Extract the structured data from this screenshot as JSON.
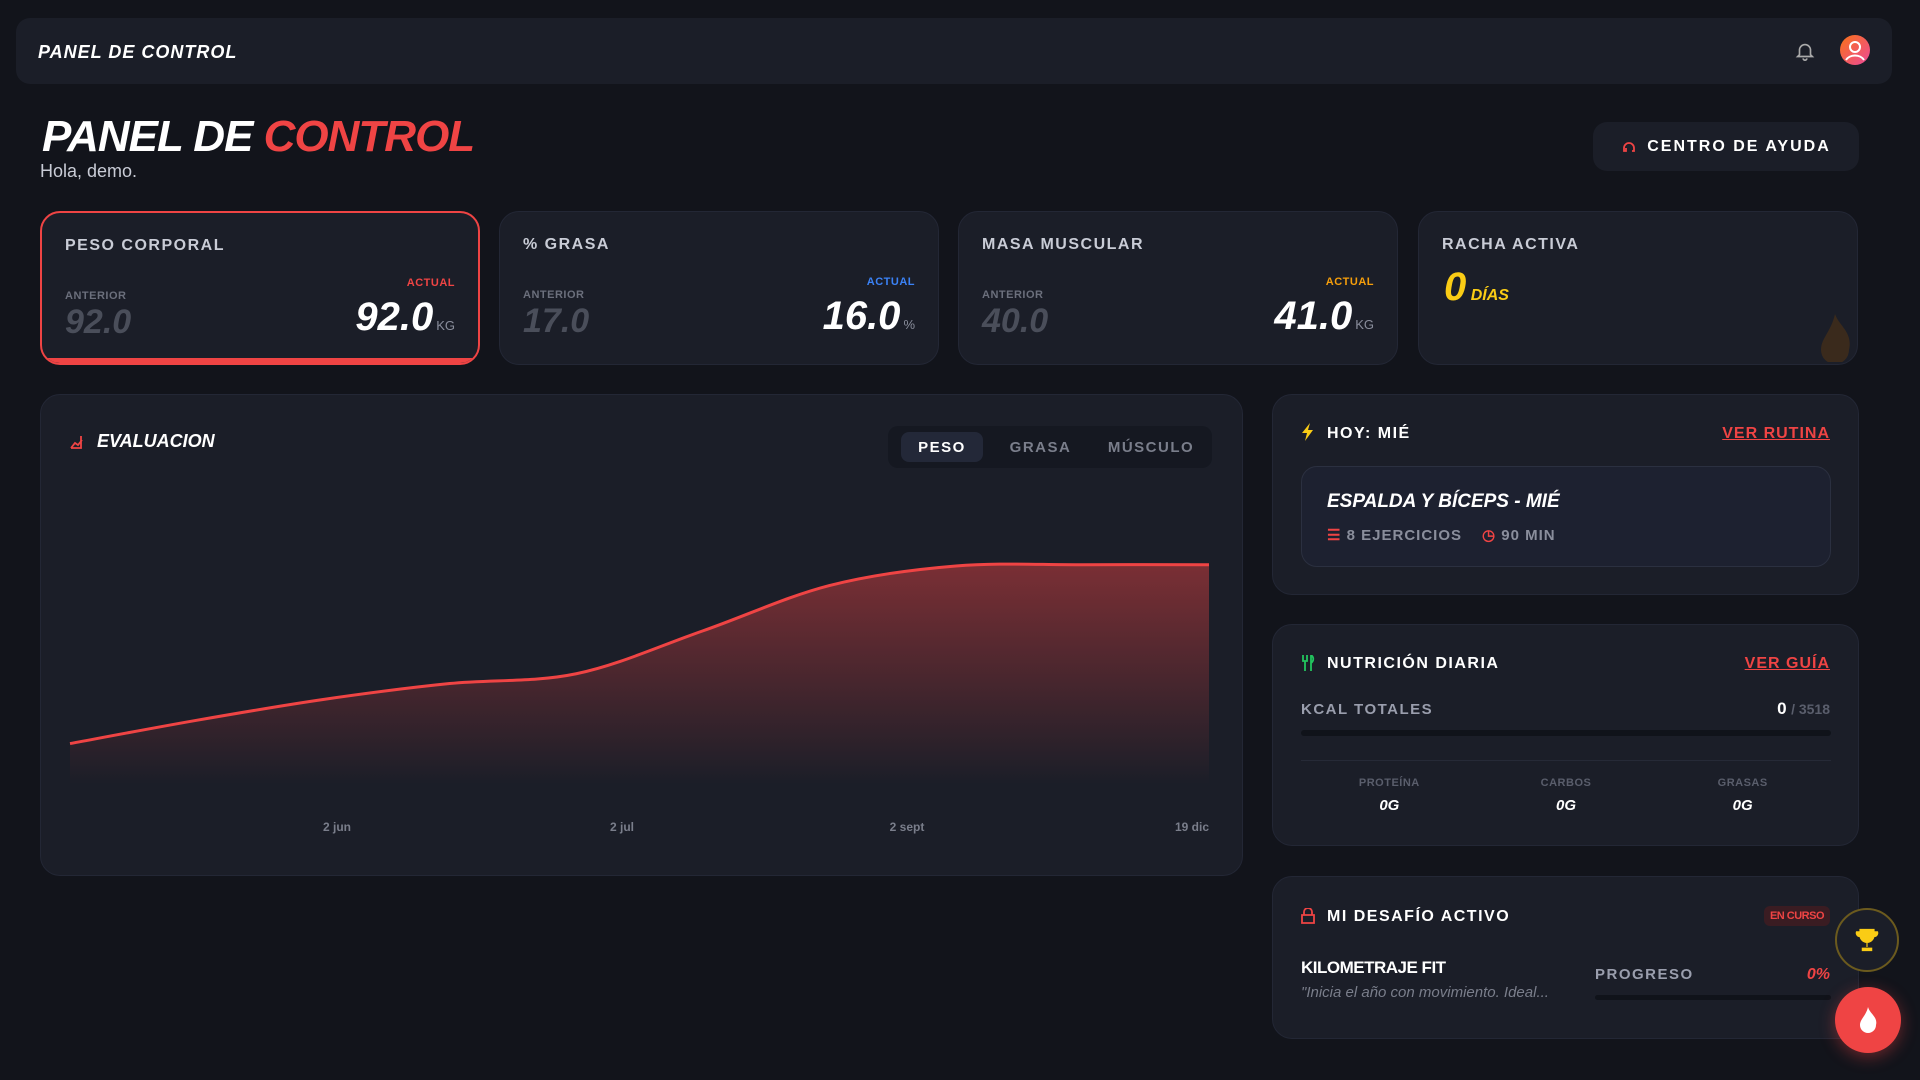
{
  "header": {
    "title": "PANEL DE CONTROL"
  },
  "page": {
    "title_main": "PANEL DE",
    "title_accent": "CONTROL",
    "greeting": "Hola, demo.",
    "help_button": "CENTRO DE AYUDA"
  },
  "stats": [
    {
      "label": "PESO CORPORAL",
      "previous_label": "ANTERIOR",
      "previous": "92.0",
      "current_label": "ACTUAL",
      "current": "92.0",
      "unit": "KG",
      "color": "#ef4444"
    },
    {
      "label": "% GRASA",
      "previous_label": "ANTERIOR",
      "previous": "17.0",
      "current_label": "ACTUAL",
      "current": "16.0",
      "unit": "%",
      "color": "#3b82f6"
    },
    {
      "label": "MASA MUSCULAR",
      "previous_label": "ANTERIOR",
      "previous": "40.0",
      "current_label": "ACTUAL",
      "current": "41.0",
      "unit": "KG",
      "color": "#f59e0b"
    }
  ],
  "streak": {
    "label": "RACHA ACTIVA",
    "value": "0",
    "unit": "DÍAS"
  },
  "chart_data": {
    "type": "area",
    "title": "EVALUACION",
    "tabs": [
      "PESO",
      "GRASA",
      "MÚSCULO"
    ],
    "active_tab": 0,
    "x_labels": [
      "2 jun",
      "2 jul",
      "2 sept",
      "19 dic"
    ],
    "values": [
      33,
      52,
      69,
      82,
      90,
      125,
      162,
      178,
      179,
      179
    ],
    "ylim": [
      0,
      240
    ],
    "color": "#ef4444"
  },
  "today": {
    "title": "HOY: MIÉ",
    "link": "VER RUTINA",
    "routine": "ESPALDA Y BÍCEPS - MIÉ",
    "exercises": "8 EJERCICIOS",
    "duration": "90 MIN"
  },
  "nutrition": {
    "title": "NUTRICIÓN DIARIA",
    "link": "VER GUÍA",
    "kcal_label": "KCAL TOTALES",
    "kcal": 0,
    "kcal_goal": {
      "value": 3518,
      "label": "/ 3518"
    },
    "macros": [
      {
        "label": "PROTEÍNA",
        "value": "0G"
      },
      {
        "label": "CARBOS",
        "value": "0G"
      },
      {
        "label": "GRASAS",
        "value": "0G"
      }
    ]
  },
  "challenge": {
    "title": "MI DESAFÍO ACTIVO",
    "status": "EN CURSO",
    "name": "KILOMETRAJE FIT",
    "description": "\"Inicia el año con movimiento. Ideal...",
    "progress_label": "PROGRESO",
    "progress": {
      "value": 0,
      "label": "0%"
    }
  }
}
